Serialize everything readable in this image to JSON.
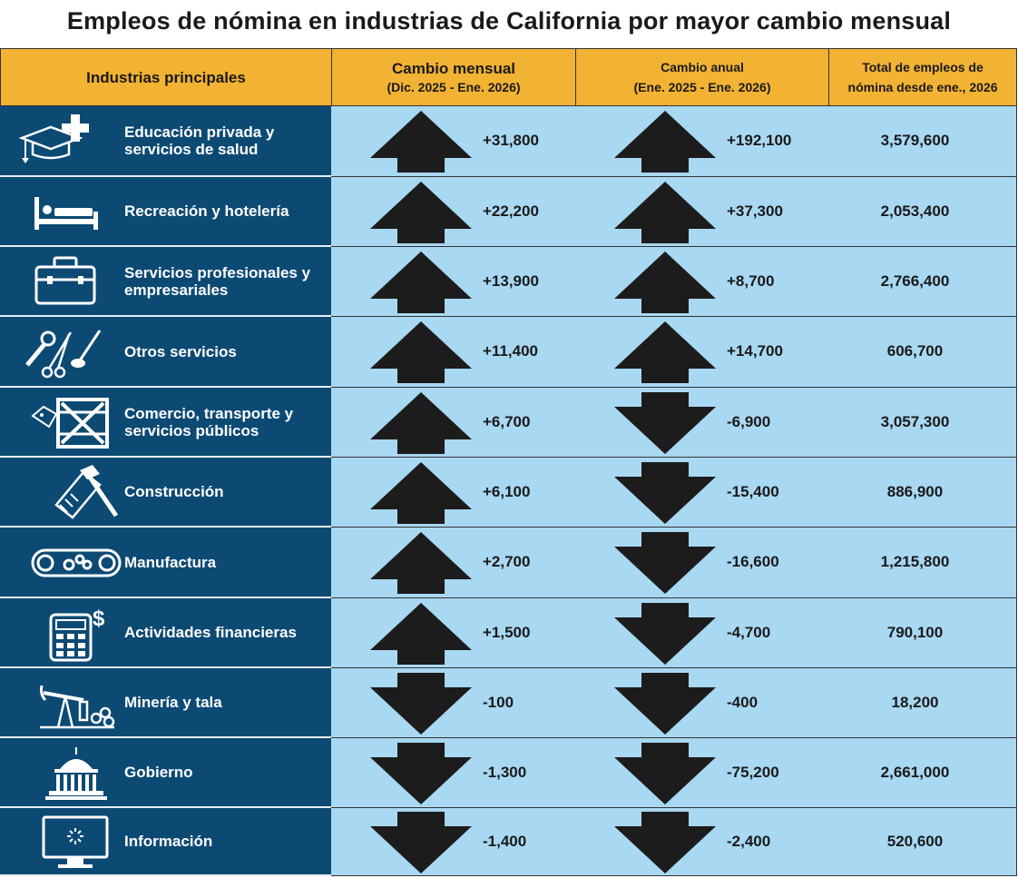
{
  "title": "Empleos de nómina en industrias de California por mayor cambio mensual",
  "headers": {
    "industry": "Industrias principales",
    "monthly_l1": "Cambio mensual",
    "monthly_l2": "(Dic. 2025 - Ene. 2026)",
    "annual_l1": "Cambio anual",
    "annual_l2": "(Ene. 2025 - Ene. 2026)",
    "total_l1": "Total de empleos de",
    "total_l2": "nómina desde ene., 2026"
  },
  "colors": {
    "header": "#f2b233",
    "industry_bg": "#0c4a74",
    "cell_bg": "#a9d8f2",
    "arrow": "#1c1c1c"
  },
  "chart_data": {
    "type": "table",
    "columns": [
      "Industrias principales",
      "Cambio mensual (Dic. 2025 - Ene. 2026)",
      "Cambio anual (Ene. 2025 - Ene. 2026)",
      "Total de empleos de nómina desde ene., 2026"
    ],
    "rows": [
      {
        "industry": "Educación privada y\nservicios de salud",
        "icon": "education-health-icon",
        "monthly": "+31,800",
        "monthly_dir": "up",
        "annual": "+192,100",
        "annual_dir": "up",
        "total": "3,579,600"
      },
      {
        "industry": "Recreación y hotelería",
        "icon": "bed-icon",
        "monthly": "+22,200",
        "monthly_dir": "up",
        "annual": "+37,300",
        "annual_dir": "up",
        "total": "2,053,400"
      },
      {
        "industry": "Servicios profesionales y\nempresariales",
        "icon": "briefcase-icon",
        "monthly": "+13,900",
        "monthly_dir": "up",
        "annual": "+8,700",
        "annual_dir": "up",
        "total": "2,766,400"
      },
      {
        "industry": "Otros servicios",
        "icon": "tools-scissors-icon",
        "monthly": "+11,400",
        "monthly_dir": "up",
        "annual": "+14,700",
        "annual_dir": "up",
        "total": "606,700"
      },
      {
        "industry": "Comercio, transporte y\nservicios públicos",
        "icon": "crate-tag-icon",
        "monthly": "+6,700",
        "monthly_dir": "up",
        "annual": "-6,900",
        "annual_dir": "down",
        "total": "3,057,300"
      },
      {
        "industry": "Construcción",
        "icon": "hammer-saw-icon",
        "monthly": "+6,100",
        "monthly_dir": "up",
        "annual": "-15,400",
        "annual_dir": "down",
        "total": "886,900"
      },
      {
        "industry": "Manufactura",
        "icon": "conveyor-gears-icon",
        "monthly": "+2,700",
        "monthly_dir": "up",
        "annual": "-16,600",
        "annual_dir": "down",
        "total": "1,215,800"
      },
      {
        "industry": "Actividades financieras",
        "icon": "calculator-dollar-icon",
        "monthly": "+1,500",
        "monthly_dir": "up",
        "annual": "-4,700",
        "annual_dir": "down",
        "total": "790,100"
      },
      {
        "industry": "Minería y tala",
        "icon": "pumpjack-logs-icon",
        "monthly": "-100",
        "monthly_dir": "down",
        "annual": "-400",
        "annual_dir": "down",
        "total": "18,200"
      },
      {
        "industry": "Gobierno",
        "icon": "capitol-icon",
        "monthly": "-1,300",
        "monthly_dir": "down",
        "annual": "-75,200",
        "annual_dir": "down",
        "total": "2,661,000"
      },
      {
        "industry": "Información",
        "icon": "monitor-icon",
        "monthly": "-1,400",
        "monthly_dir": "down",
        "annual": "-2,400",
        "annual_dir": "down",
        "total": "520,600"
      }
    ]
  }
}
